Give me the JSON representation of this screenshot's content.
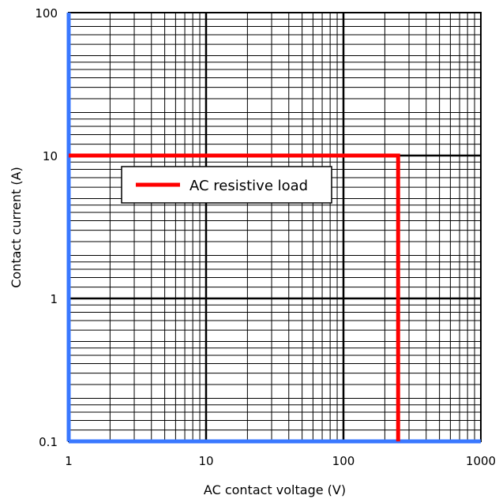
{
  "chart_data": {
    "type": "line",
    "title": "",
    "xlabel": "AC contact voltage (V)",
    "ylabel": "Contact current (A)",
    "xscale": "log",
    "yscale": "log",
    "xlim": [
      1,
      1000
    ],
    "ylim": [
      0.1,
      100
    ],
    "x_tick_labels": [
      "1",
      "10",
      "100",
      "1000"
    ],
    "y_tick_labels": [
      "0.1",
      "1",
      "10",
      "100"
    ],
    "grid": true,
    "legend_placement": "upper-left",
    "series": [
      {
        "name": "AC resistive load",
        "color": "#ff0000",
        "x": [
          1,
          250,
          250
        ],
        "y": [
          10,
          10,
          0.1
        ]
      }
    ],
    "axis_color": "#3a78ff",
    "grid_color": "#000000"
  }
}
